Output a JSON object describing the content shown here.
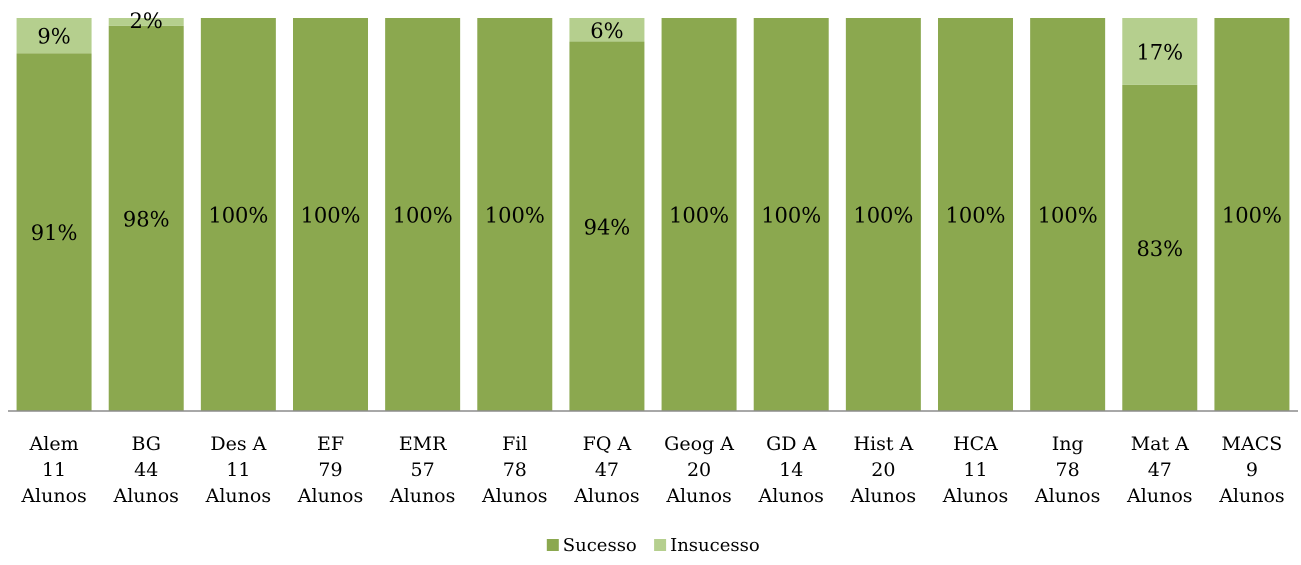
{
  "chart_data": {
    "type": "bar",
    "stacked": true,
    "categories": [
      [
        "Alem",
        "11",
        "Alunos"
      ],
      [
        "BG",
        "44",
        "Alunos"
      ],
      [
        "Des A",
        "11",
        "Alunos"
      ],
      [
        "EF",
        "79",
        "Alunos"
      ],
      [
        "EMR",
        "57",
        "Alunos"
      ],
      [
        "Fil",
        "78",
        "Alunos"
      ],
      [
        "FQ A",
        "47",
        "Alunos"
      ],
      [
        "Geog A",
        "20",
        "Alunos"
      ],
      [
        "GD A",
        "14",
        "Alunos"
      ],
      [
        "Hist A",
        "20",
        "Alunos"
      ],
      [
        "HCA",
        "11",
        "Alunos"
      ],
      [
        "Ing",
        "78",
        "Alunos"
      ],
      [
        "Mat A",
        "47",
        "Alunos"
      ],
      [
        "MACS",
        "9",
        "Alunos"
      ]
    ],
    "series": [
      {
        "name": "Sucesso",
        "color": "#8BA84F",
        "values": [
          91,
          98,
          100,
          100,
          100,
          100,
          94,
          100,
          100,
          100,
          100,
          100,
          83,
          100
        ],
        "labels": [
          "91%",
          "98%",
          "100%",
          "100%",
          "100%",
          "100%",
          "94%",
          "100%",
          "100%",
          "100%",
          "100%",
          "100%",
          "83%",
          "100%"
        ]
      },
      {
        "name": "Insucesso",
        "color": "#B5CF8E",
        "values": [
          9,
          2,
          0,
          0,
          0,
          0,
          6,
          0,
          0,
          0,
          0,
          0,
          17,
          0
        ],
        "labels": [
          "9%",
          "2%",
          "",
          "",
          "",
          "",
          "6%",
          "",
          "",
          "",
          "",
          "",
          "17%",
          ""
        ]
      }
    ],
    "ylim": [
      0,
      100
    ],
    "legend_position": "bottom"
  }
}
